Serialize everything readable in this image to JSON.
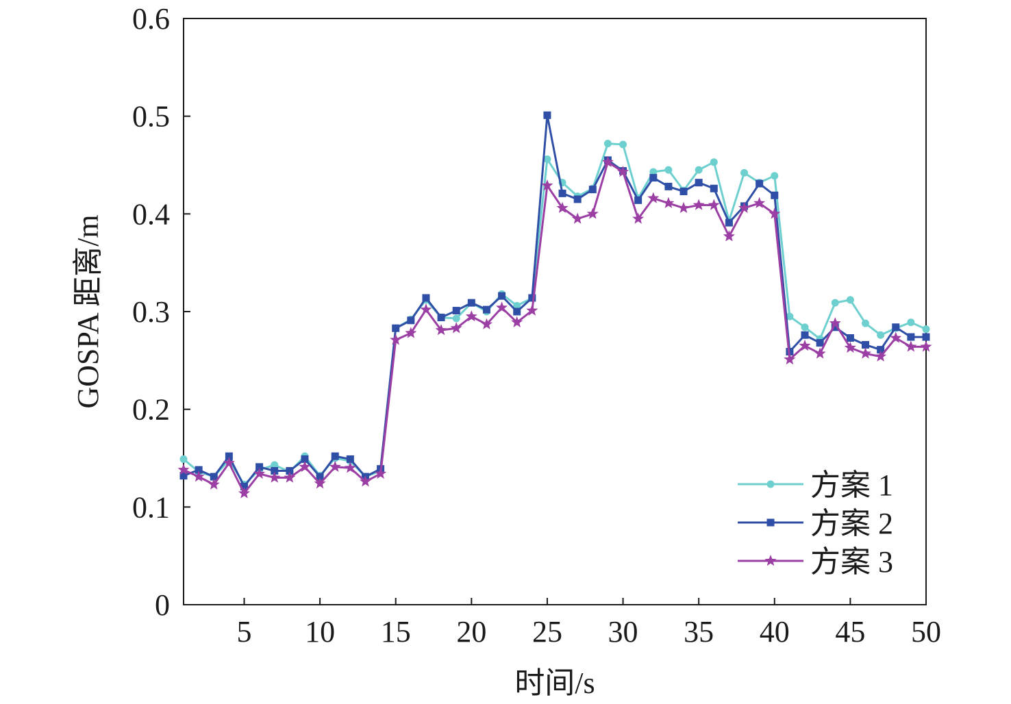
{
  "chart_data": {
    "type": "line",
    "title": "",
    "xlabel": "时间/s",
    "ylabel": "GOSPA 距离/m",
    "xlim": [
      1,
      50
    ],
    "ylim": [
      0,
      0.6
    ],
    "xticks": [
      5,
      10,
      15,
      20,
      25,
      30,
      35,
      40,
      45,
      50
    ],
    "xtick_labels": [
      "5",
      "10",
      "15",
      "20",
      "25",
      "30",
      "35",
      "40",
      "45",
      "50"
    ],
    "yticks": [
      0,
      0.1,
      0.2,
      0.3,
      0.4,
      0.5,
      0.6
    ],
    "ytick_labels": [
      "0",
      "0.1",
      "0.2",
      "0.3",
      "0.4",
      "0.5",
      "0.6"
    ],
    "grid": false,
    "legend_position": "bottom-right",
    "x": [
      1,
      2,
      3,
      4,
      5,
      6,
      7,
      8,
      9,
      10,
      11,
      12,
      13,
      14,
      15,
      16,
      17,
      18,
      19,
      20,
      21,
      22,
      23,
      24,
      25,
      26,
      27,
      28,
      29,
      30,
      31,
      32,
      33,
      34,
      35,
      36,
      37,
      38,
      39,
      40,
      41,
      42,
      43,
      44,
      45,
      46,
      47,
      48,
      49,
      50
    ],
    "series": [
      {
        "name": "方案 1",
        "color": "#6ecfcf",
        "marker": "circle",
        "values": [
          0.149,
          0.136,
          0.131,
          0.148,
          0.123,
          0.138,
          0.143,
          0.136,
          0.152,
          0.132,
          0.15,
          0.147,
          0.131,
          0.137,
          0.283,
          0.292,
          0.312,
          0.294,
          0.293,
          0.309,
          0.3,
          0.318,
          0.306,
          0.314,
          0.456,
          0.432,
          0.418,
          0.426,
          0.472,
          0.471,
          0.416,
          0.443,
          0.445,
          0.424,
          0.445,
          0.453,
          0.393,
          0.442,
          0.432,
          0.439,
          0.295,
          0.284,
          0.272,
          0.309,
          0.312,
          0.288,
          0.276,
          0.283,
          0.289,
          0.282
        ]
      },
      {
        "name": "方案 2",
        "color": "#2f4fa6",
        "marker": "square",
        "values": [
          0.132,
          0.138,
          0.131,
          0.152,
          0.121,
          0.141,
          0.137,
          0.137,
          0.149,
          0.131,
          0.152,
          0.149,
          0.131,
          0.139,
          0.283,
          0.291,
          0.314,
          0.294,
          0.301,
          0.309,
          0.302,
          0.316,
          0.3,
          0.314,
          0.501,
          0.421,
          0.415,
          0.425,
          0.455,
          0.444,
          0.414,
          0.437,
          0.428,
          0.423,
          0.432,
          0.426,
          0.391,
          0.408,
          0.431,
          0.419,
          0.259,
          0.276,
          0.268,
          0.284,
          0.273,
          0.266,
          0.261,
          0.284,
          0.274,
          0.274
        ]
      },
      {
        "name": "方案 3",
        "color": "#9c3fa4",
        "marker": "star",
        "values": [
          0.138,
          0.131,
          0.123,
          0.145,
          0.114,
          0.134,
          0.13,
          0.13,
          0.141,
          0.124,
          0.141,
          0.14,
          0.126,
          0.134,
          0.271,
          0.278,
          0.302,
          0.281,
          0.283,
          0.295,
          0.287,
          0.304,
          0.289,
          0.301,
          0.429,
          0.406,
          0.395,
          0.4,
          0.453,
          0.443,
          0.395,
          0.416,
          0.411,
          0.406,
          0.409,
          0.409,
          0.377,
          0.406,
          0.411,
          0.4,
          0.251,
          0.265,
          0.257,
          0.288,
          0.263,
          0.257,
          0.254,
          0.273,
          0.264,
          0.264
        ]
      }
    ]
  }
}
